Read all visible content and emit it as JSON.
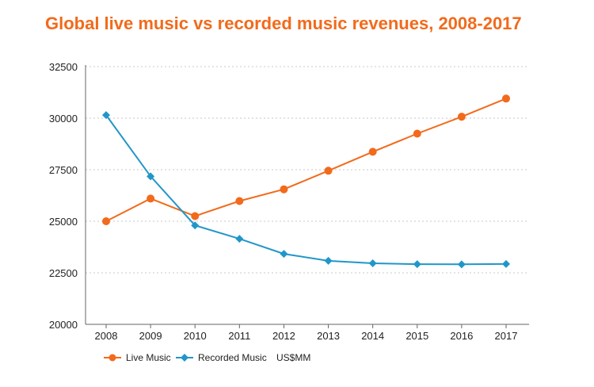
{
  "chart_data": {
    "type": "line",
    "title": "Global live music vs recorded music revenues, 2008-2017",
    "categories": [
      "2008",
      "2009",
      "2010",
      "2011",
      "2012",
      "2013",
      "2014",
      "2015",
      "2016",
      "2017"
    ],
    "series": [
      {
        "name": "Live Music",
        "color": "#f26a1b",
        "marker": "circle",
        "values": [
          25000,
          26100,
          25250,
          25980,
          26550,
          27450,
          28370,
          29250,
          30070,
          30950
        ]
      },
      {
        "name": "Recorded Music",
        "color": "#2196c9",
        "marker": "diamond",
        "values": [
          30150,
          27180,
          24800,
          24150,
          23420,
          23080,
          22960,
          22920,
          22910,
          22930
        ]
      }
    ],
    "ylim": [
      20000,
      32500
    ],
    "yticks": [
      "20000",
      "22500",
      "25000",
      "27500",
      "30000",
      "32500"
    ],
    "unit_label": "US$MM",
    "grid": true,
    "legend_position": "bottom-left"
  }
}
